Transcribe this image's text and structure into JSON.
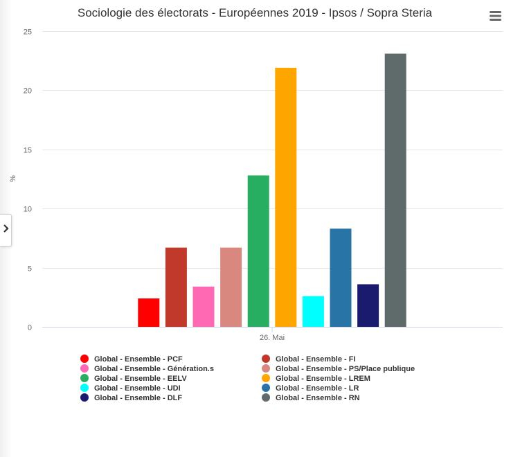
{
  "toolbar": {
    "expand_icon": "chevron-right-icon",
    "menu_icon": "hamburger-menu-icon"
  },
  "chart_data": {
    "type": "bar",
    "title": "Sociologie des électorats - Européennes 2019 - Ipsos / Sopra Steria",
    "xlabel": "",
    "ylabel": "%",
    "categories": [
      "26. Mai"
    ],
    "ylim": [
      0,
      25
    ],
    "yticks": [
      0,
      5,
      10,
      15,
      20,
      25
    ],
    "grid": true,
    "legend_position": "bottom",
    "series": [
      {
        "name": "Global - Ensemble - PCF",
        "values": [
          2.4
        ],
        "color": "#ff0000"
      },
      {
        "name": "Global - Ensemble - FI",
        "values": [
          6.7
        ],
        "color": "#c0392b"
      },
      {
        "name": "Global - Ensemble - Génération.s",
        "values": [
          3.4
        ],
        "color": "#ff69b4"
      },
      {
        "name": "Global - Ensemble - PS/Place publique",
        "values": [
          6.7
        ],
        "color": "#d98880"
      },
      {
        "name": "Global - Ensemble - EELV",
        "values": [
          12.8
        ],
        "color": "#27ae60"
      },
      {
        "name": "Global - Ensemble - LREM",
        "values": [
          21.9
        ],
        "color": "#ffa500"
      },
      {
        "name": "Global - Ensemble - UDI",
        "values": [
          2.6
        ],
        "color": "#00ffff"
      },
      {
        "name": "Global - Ensemble - LR",
        "values": [
          8.3
        ],
        "color": "#2874a6"
      },
      {
        "name": "Global - Ensemble - DLF",
        "values": [
          3.6
        ],
        "color": "#1a1a6e"
      },
      {
        "name": "Global - Ensemble - RN",
        "values": [
          23.1
        ],
        "color": "#5f6a6a"
      }
    ]
  }
}
